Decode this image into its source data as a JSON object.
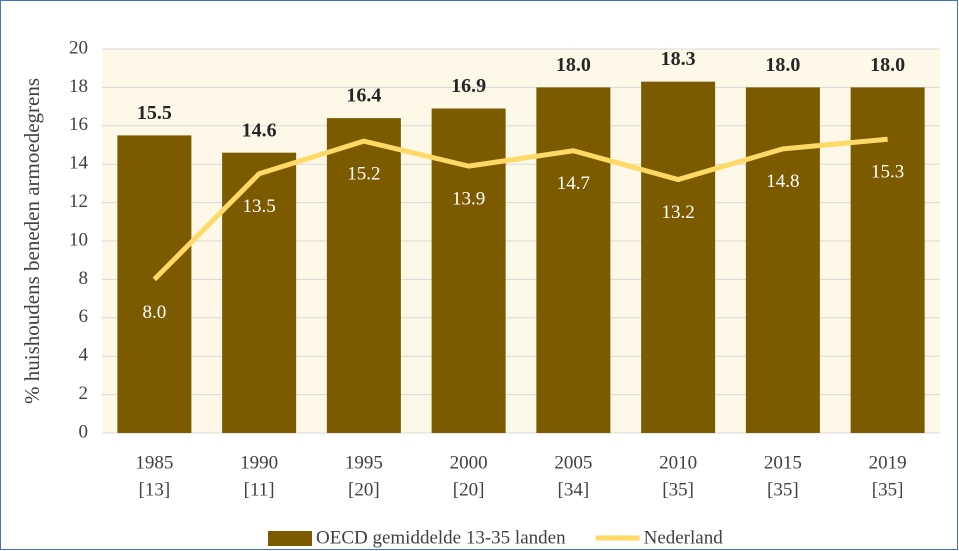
{
  "chart_data": {
    "type": "bar",
    "y_label": "% huishoudens beneden armoedegrens",
    "categories": [
      [
        "1985",
        "[13]"
      ],
      [
        "1990",
        "[11]"
      ],
      [
        "1995",
        "[20]"
      ],
      [
        "2000",
        "[20]"
      ],
      [
        "2005",
        "[34]"
      ],
      [
        "2010",
        "[35]"
      ],
      [
        "2015",
        "[35]"
      ],
      [
        "2019",
        "[35]"
      ]
    ],
    "series": [
      {
        "name": "OECD gemiddelde 13-35 landen",
        "type": "bar",
        "color": "#7b5a00",
        "values": [
          15.5,
          14.6,
          16.4,
          16.9,
          18.0,
          18.3,
          18.0,
          18.0
        ],
        "value_labels": [
          "15.5",
          "14.6",
          "16.4",
          "16.9",
          "18.0",
          "18.3",
          "18.0",
          "18.0"
        ]
      },
      {
        "name": "Nederland",
        "type": "line",
        "color": "#ffd966",
        "values": [
          8.0,
          13.5,
          15.2,
          13.9,
          14.7,
          13.2,
          14.8,
          15.3
        ],
        "value_labels": [
          "8.0",
          "13.5",
          "15.2",
          "13.9",
          "14.7",
          "13.2",
          "14.8",
          "15.3"
        ]
      }
    ],
    "ylim": [
      0,
      20
    ],
    "yticks": [
      0,
      2,
      4,
      6,
      8,
      10,
      12,
      14,
      16,
      18,
      20
    ],
    "grid": true,
    "legend": "bottom"
  }
}
